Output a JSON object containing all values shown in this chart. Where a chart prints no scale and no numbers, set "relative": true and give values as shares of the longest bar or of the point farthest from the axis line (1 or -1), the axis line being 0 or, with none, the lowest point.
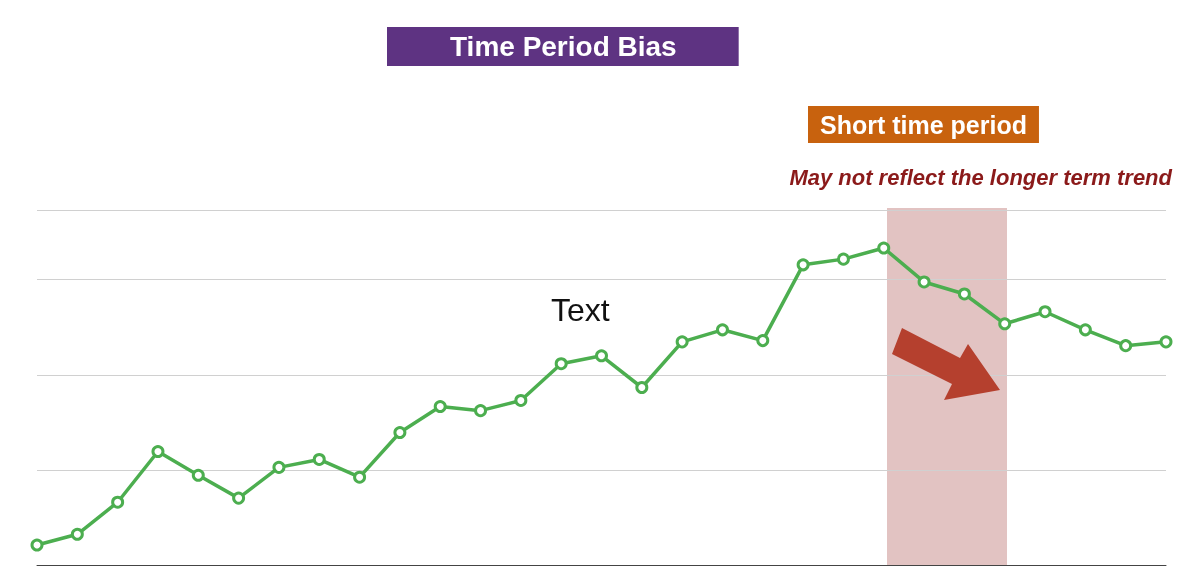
{
  "chart_data": {
    "type": "line",
    "title": "Time Period Bias",
    "relative": true,
    "grid": "y",
    "marker": "circle",
    "line_style": "solid",
    "categories": [
      null,
      null,
      null,
      null,
      null,
      null,
      null,
      null,
      null,
      null,
      null,
      null,
      null,
      null,
      null,
      null,
      null,
      null,
      null,
      null,
      null,
      null,
      null,
      null,
      null,
      null,
      null,
      null,
      null
    ],
    "series": [
      {
        "color": "#4cae4f",
        "values": [
          0.063,
          0.097,
          0.198,
          0.358,
          0.283,
          0.211,
          0.308,
          0.333,
          0.277,
          0.418,
          0.5,
          0.487,
          0.519,
          0.635,
          0.66,
          0.56,
          0.704,
          0.742,
          0.708,
          0.947,
          0.965,
          1,
          0.893,
          0.855,
          0.761,
          0.799,
          0.742,
          0.692,
          0.704
        ]
      }
    ],
    "annotations": [
      "Short time period",
      "May not reflect the longer term trend",
      "Text"
    ]
  }
}
